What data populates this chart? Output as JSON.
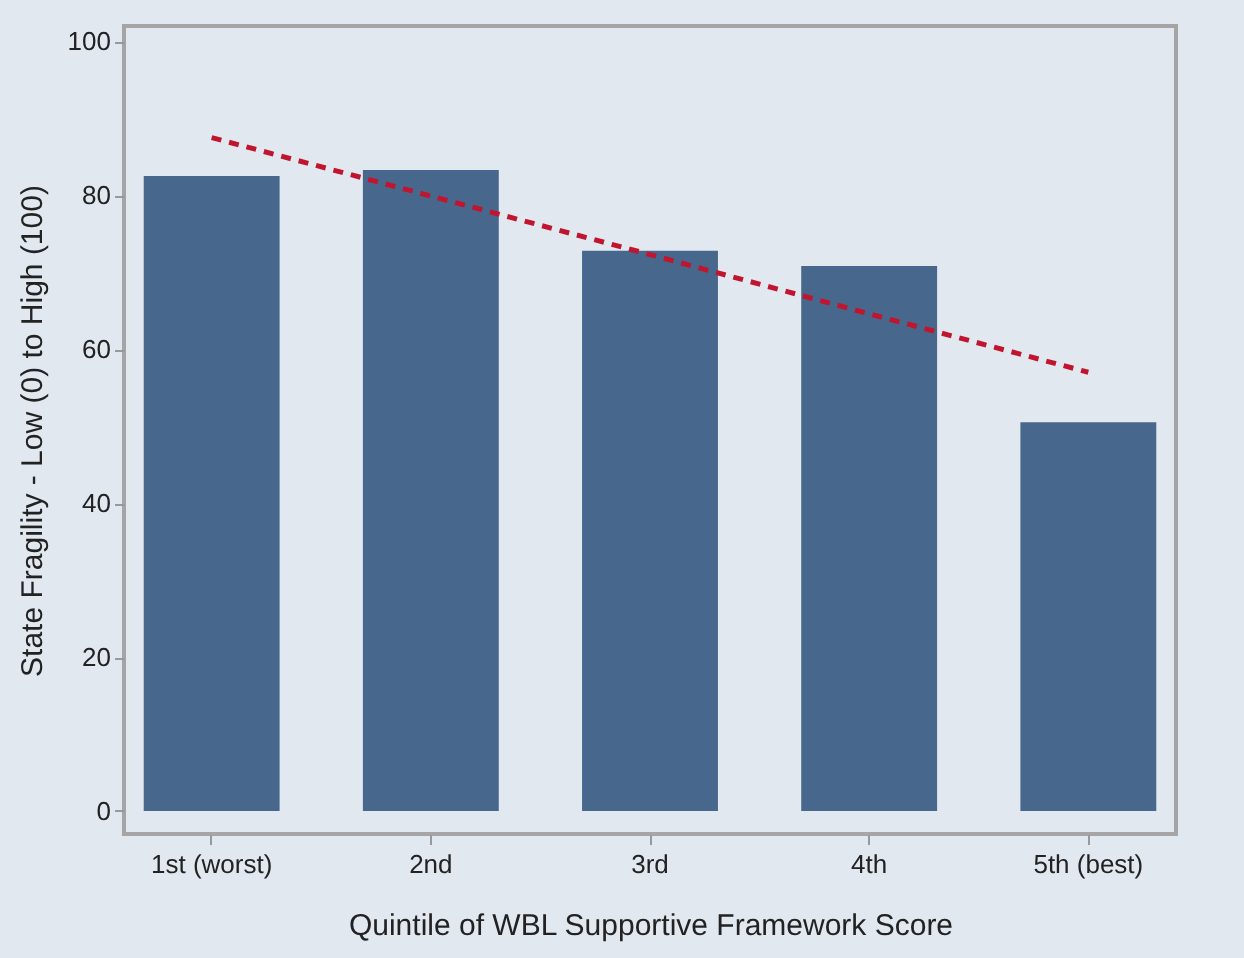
{
  "chart_data": {
    "type": "bar",
    "xlabel": "Quintile of WBL Supportive Framework Score",
    "ylabel": "State Fragility - Low (0) to High (100)",
    "categories": [
      "1st (worst)",
      "2nd",
      "3rd",
      "4th",
      "5th (best)"
    ],
    "series": [
      {
        "color": "#48678c",
        "values": [
          82.5,
          83.3,
          72.8,
          70.8,
          50.5
        ]
      },
      {
        "type": "line",
        "color": "#c0152f",
        "line_style": "dashed",
        "values": [
          87.5,
          79.9,
          72.3,
          64.6,
          57.0
        ]
      }
    ],
    "ylim": [
      -3,
      102
    ],
    "yticks": [
      0,
      20,
      40,
      60,
      80,
      100
    ],
    "grid": false
  }
}
